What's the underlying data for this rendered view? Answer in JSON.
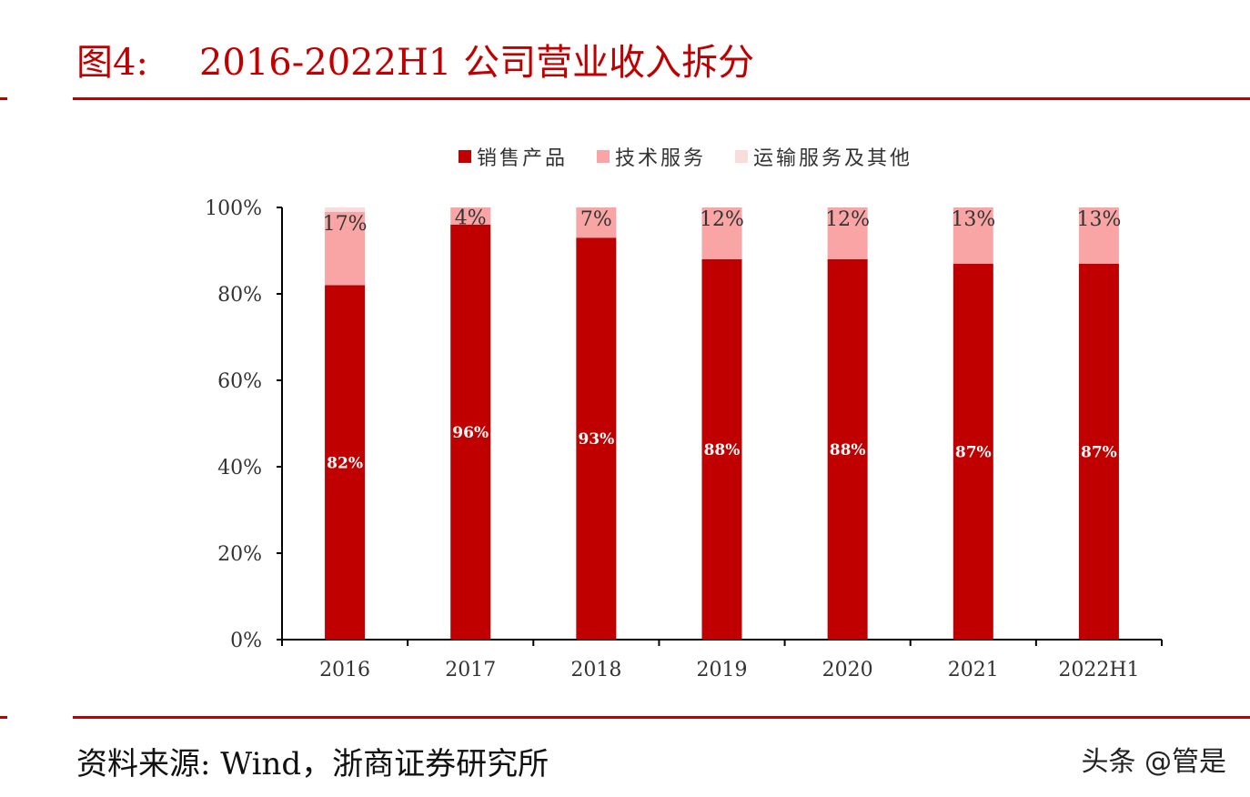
{
  "header": {
    "figure_label": "图4:",
    "title": "2016-2022H1 公司营业收入拆分"
  },
  "footer": {
    "source": "资料来源:  Wind，浙商证券研究所",
    "watermark": "头条 @管是"
  },
  "chart_data": {
    "type": "bar",
    "stacked": true,
    "categories": [
      "2016",
      "2017",
      "2018",
      "2019",
      "2020",
      "2021",
      "2022H1"
    ],
    "series": [
      {
        "name": "销售产品",
        "values": [
          82,
          96,
          93,
          88,
          88,
          87,
          87
        ],
        "labels": [
          "82%",
          "96%",
          "93%",
          "88%",
          "88%",
          "87%",
          "87%"
        ],
        "color": "#c00000"
      },
      {
        "name": "技术服务",
        "values": [
          17,
          4,
          7,
          12,
          12,
          13,
          13
        ],
        "labels": [
          "17%",
          "4%",
          "7%",
          "12%",
          "12%",
          "13%",
          "13%"
        ],
        "color": "#f9a5a5"
      },
      {
        "name": "运输服务及其他",
        "values": [
          1,
          0,
          0,
          0,
          0,
          0,
          0
        ],
        "labels": [
          "",
          "",
          "",
          "",
          "",
          "",
          ""
        ],
        "color": "#fbdcdc"
      }
    ],
    "ylim": [
      0,
      100
    ],
    "yticks": [
      "0%",
      "20%",
      "40%",
      "60%",
      "80%",
      "100%"
    ],
    "grid": false,
    "legend": "top"
  }
}
